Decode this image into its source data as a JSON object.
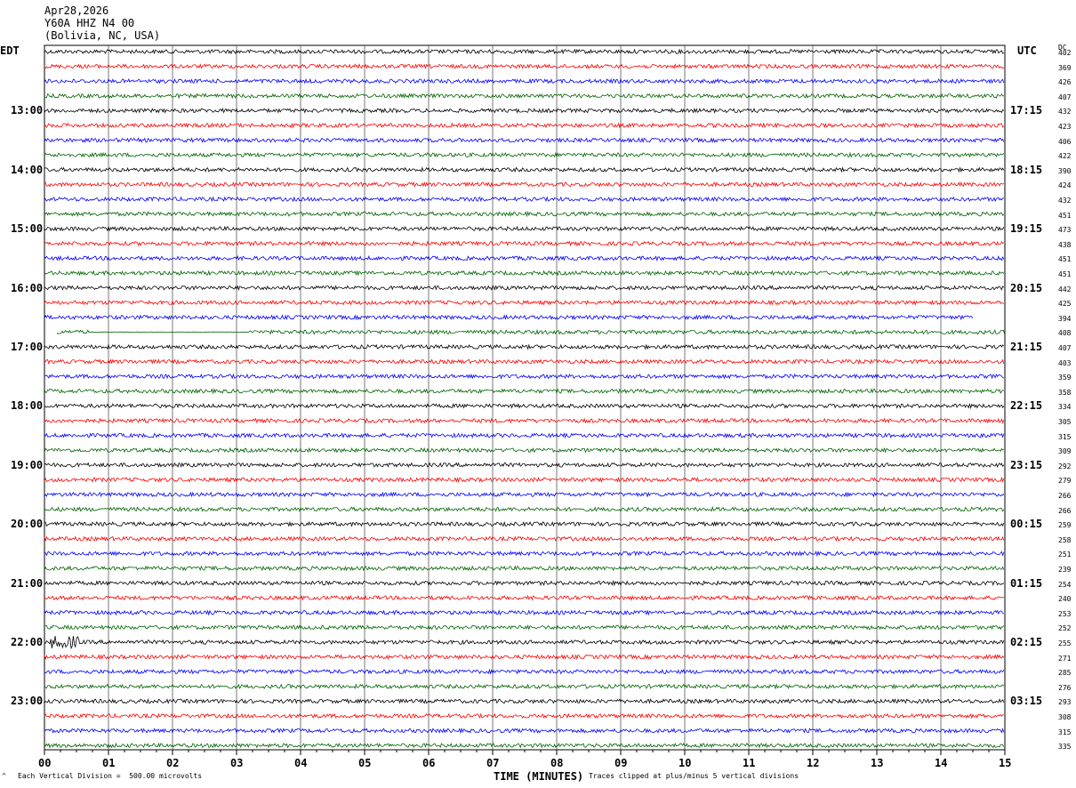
{
  "header": {
    "date": "Apr28,2026",
    "station": "Y60A HHZ N4 00",
    "location": "(Bolivia, NC, USA)"
  },
  "left_tz": "EDT",
  "right_tz": "UTC",
  "dc_label": "DC",
  "footer": {
    "division": "Each Vertical Division =  500.00 microvolts",
    "clipped": "Traces clipped at plus/minus 5 vertical divisions",
    "corner": "^"
  },
  "chart_data": {
    "type": "line",
    "xlabel": "TIME (MINUTES)",
    "xlim": [
      0,
      15
    ],
    "x_ticks": [
      "00",
      "01",
      "02",
      "03",
      "04",
      "05",
      "06",
      "07",
      "08",
      "09",
      "10",
      "11",
      "12",
      "13",
      "14",
      "15"
    ],
    "left_hour_labels": [
      "13:00",
      "14:00",
      "15:00",
      "16:00",
      "17:00",
      "18:00",
      "19:00",
      "20:00",
      "21:00",
      "22:00",
      "23:00"
    ],
    "right_hour_labels": [
      "17:15",
      "18:15",
      "19:15",
      "20:15",
      "21:15",
      "22:15",
      "23:15",
      "00:15",
      "01:15",
      "02:15",
      "03:15"
    ],
    "trace_colors": [
      "#000000",
      "#ff0000",
      "#0000ff",
      "#006400"
    ],
    "dc_offsets": [
      402,
      369,
      426,
      407,
      432,
      423,
      406,
      422,
      390,
      424,
      432,
      451,
      473,
      438,
      451,
      451,
      442,
      425,
      394,
      408,
      407,
      403,
      359,
      358,
      334,
      305,
      315,
      309,
      292,
      279,
      266,
      266,
      259,
      258,
      251,
      239,
      254,
      240,
      253,
      252,
      255,
      271,
      285,
      276,
      293,
      308,
      315,
      335
    ],
    "trace_count": 48
  }
}
